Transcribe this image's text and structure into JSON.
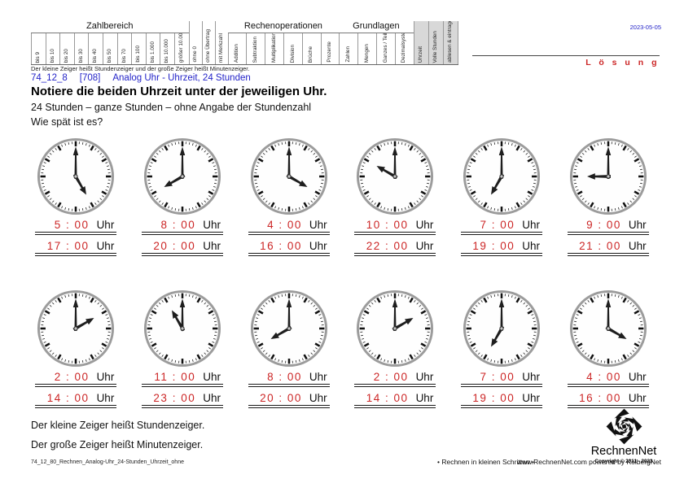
{
  "meta": {
    "date": "2023-05-05",
    "solution_label": "L ö s u n g"
  },
  "header_table": {
    "sections": [
      {
        "title": "Zahlbereich",
        "columns": [
          "bis 9",
          "bis 10",
          "bis 20",
          "bis 30",
          "bis 40",
          "bis 50",
          "bis 70",
          "bis 100",
          "bis 1.000",
          "bis 10.000",
          "größer 10.000"
        ],
        "highlighted": false
      },
      {
        "title": "",
        "columns": [
          "ohne 0",
          "ohne Übertrag",
          "mit Merkzahl"
        ],
        "highlighted": false
      },
      {
        "title": "Rechenoperationen",
        "columns": [
          "Addition",
          "Subtraktion",
          "Multiplikation",
          "Division",
          "Brüche",
          "Prozente"
        ],
        "highlighted": false
      },
      {
        "title": "Grundlagen",
        "columns": [
          "Zahlen",
          "Mengen",
          "Ganzes / Teile",
          "Dezimalsystem"
        ],
        "highlighted": false
      },
      {
        "title": "",
        "columns": [
          "Uhrzeit",
          "Volle Stunden",
          "ablesen & eintragen"
        ],
        "highlighted": true
      }
    ]
  },
  "hint_top": "Der kleine Zeiger heißt Stundenzeiger und der große Zeiger heißt Minutenzeiger.",
  "doc": {
    "id": "74_12_8",
    "code": "[708]",
    "topic": "Analog Uhr - Uhrzeit, 24 Stunden"
  },
  "task": {
    "title": "Notiere die beiden Uhrzeit unter der jeweiligen Uhr.",
    "subtitle": "24 Stunden – ganze Stunden – ohne Angabe der Stundenzahl",
    "question": "Wie spät ist es?",
    "unit_label": "Uhr"
  },
  "clocks": [
    {
      "hour": 5,
      "minute": 0,
      "answers": [
        "5 : 00",
        "17 : 00"
      ]
    },
    {
      "hour": 8,
      "minute": 0,
      "answers": [
        "8 : 00",
        "20 : 00"
      ]
    },
    {
      "hour": 4,
      "minute": 0,
      "answers": [
        "4 : 00",
        "16 : 00"
      ]
    },
    {
      "hour": 10,
      "minute": 0,
      "answers": [
        "10 : 00",
        "22 : 00"
      ]
    },
    {
      "hour": 7,
      "minute": 0,
      "answers": [
        "7 : 00",
        "19 : 00"
      ]
    },
    {
      "hour": 9,
      "minute": 0,
      "answers": [
        "9 : 00",
        "21 : 00"
      ]
    },
    {
      "hour": 2,
      "minute": 0,
      "answers": [
        "2 : 00",
        "14 : 00"
      ]
    },
    {
      "hour": 11,
      "minute": 0,
      "answers": [
        "11 : 00",
        "23 : 00"
      ]
    },
    {
      "hour": 8,
      "minute": 0,
      "answers": [
        "8 : 00",
        "20 : 00"
      ]
    },
    {
      "hour": 2,
      "minute": 0,
      "answers": [
        "2 : 00",
        "14 : 00"
      ]
    },
    {
      "hour": 7,
      "minute": 0,
      "answers": [
        "7 : 00",
        "19 : 00"
      ]
    },
    {
      "hour": 4,
      "minute": 0,
      "answers": [
        "4 : 00",
        "16 : 00"
      ]
    }
  ],
  "notes": {
    "note1": "Der kleine Zeiger heißt Stundenzeiger.",
    "note2": "Der große Zeiger heißt Minutenzeiger."
  },
  "footer": {
    "filename": "74_12_80_Rechnen_Analog-Uhr_24-Stunden_Uhrzeit_ohne",
    "slogan": "•  Rechnen in kleinen Schritten  •",
    "credit": "www.RechnenNet.com powered by KolbergNet"
  },
  "brand": {
    "name": "RechnenNet",
    "copyright": "Copyright © 2011 - 2023"
  },
  "colors": {
    "accent_red": "#cc2626",
    "accent_blue": "#2323c8",
    "highlight_gray": "#d8d8d8"
  }
}
